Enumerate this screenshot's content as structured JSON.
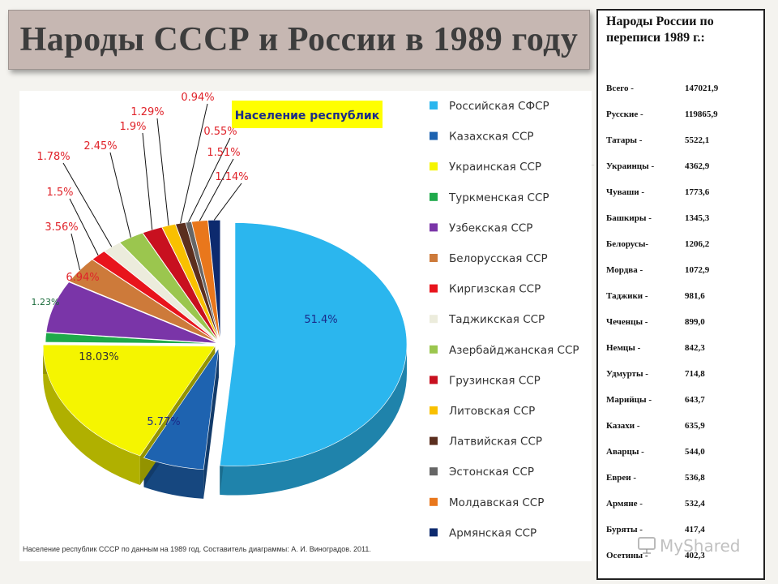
{
  "page_title": "Народы СССР и России в 1989 году",
  "chart_data": {
    "type": "pie",
    "title": "Население республик",
    "caption": "Население республик СССР по данным на 1989 год. Составитель диаграммы: А. И. Виноградов. 2011.",
    "legend_position": "right",
    "slices": [
      {
        "name": "Российская СФСР",
        "value": 51.4,
        "label": "51.4%",
        "color": "#2bb6ee"
      },
      {
        "name": "Казахская ССР",
        "value": 5.77,
        "label": "5.77%",
        "color": "#1e63b0"
      },
      {
        "name": "Украинская ССР",
        "value": 18.03,
        "label": "18.03%",
        "color": "#f5f500"
      },
      {
        "name": "Туркменская ССР",
        "value": 1.23,
        "label": "1.23%",
        "color": "#1ea94a"
      },
      {
        "name": "Узбекская ССР",
        "value": 6.94,
        "label": "6.94%",
        "color": "#7a35a8"
      },
      {
        "name": "Белорусская ССР",
        "value": 3.56,
        "label": "3.56%",
        "color": "#cd7a3a"
      },
      {
        "name": "Киргизская ССР",
        "value": 1.5,
        "label": "1.5%",
        "color": "#e8141c"
      },
      {
        "name": "Таджикская ССР",
        "value": 1.78,
        "label": "1.78%",
        "color": "#ececdc"
      },
      {
        "name": "Азербайджанская ССР",
        "value": 2.45,
        "label": "2.45%",
        "color": "#9bc64e"
      },
      {
        "name": "Грузинская ССР",
        "value": 1.9,
        "label": "1.9%",
        "color": "#c8101f"
      },
      {
        "name": "Литовская ССР",
        "value": 1.29,
        "label": "1.29%",
        "color": "#f9c000"
      },
      {
        "name": "Латвийская ССР",
        "value": 0.94,
        "label": "0.94%",
        "color": "#5b2e1e"
      },
      {
        "name": "Эстонская ССР",
        "value": 0.55,
        "label": "0.55%",
        "color": "#666666"
      },
      {
        "name": "Молдавская ССР",
        "value": 1.51,
        "label": "1.51%",
        "color": "#e9771c"
      },
      {
        "name": "Армянская ССР",
        "value": 1.14,
        "label": "1.14%",
        "color": "#0d2a6e"
      }
    ]
  },
  "sidebar": {
    "title": "Народы России по переписи 1989 г.:",
    "rows": [
      {
        "name": "Всего -",
        "value": "147021,9"
      },
      {
        "name": "Русские -",
        "value": "119865,9"
      },
      {
        "name": "Татары -",
        "value": " 5522,1"
      },
      {
        "name": "Украинцы -",
        "value": "4362,9"
      },
      {
        "name": "Чуваши -",
        "value": "1773,6"
      },
      {
        "name": "Башкиры -",
        "value": "1345,3"
      },
      {
        "name": "Белорусы-",
        "value": "1206,2"
      },
      {
        "name": "Мордва -",
        "value": "1072,9"
      },
      {
        "name": "Таджики -",
        "value": "981,6"
      },
      {
        "name": "Чеченцы -",
        "value": "899,0"
      },
      {
        "name": "Немцы -",
        "value": "842,3"
      },
      {
        "name": "Удмурты -",
        "value": "714,8"
      },
      {
        "name": "Марийцы -",
        "value": "643,7"
      },
      {
        "name": "Казахи -",
        "value": "635,9"
      },
      {
        "name": "Аварцы -",
        "value": "544,0"
      },
      {
        "name": "Евреи -",
        "value": "536,8"
      },
      {
        "name": "Армяне -",
        "value": "532,4"
      },
      {
        "name": "Буряты -",
        "value": "417,4"
      },
      {
        "name": "Осетины -",
        "value": "402,3"
      }
    ]
  },
  "watermark": {
    "text": "MyShared",
    "icon": "presentation-screen-icon"
  }
}
